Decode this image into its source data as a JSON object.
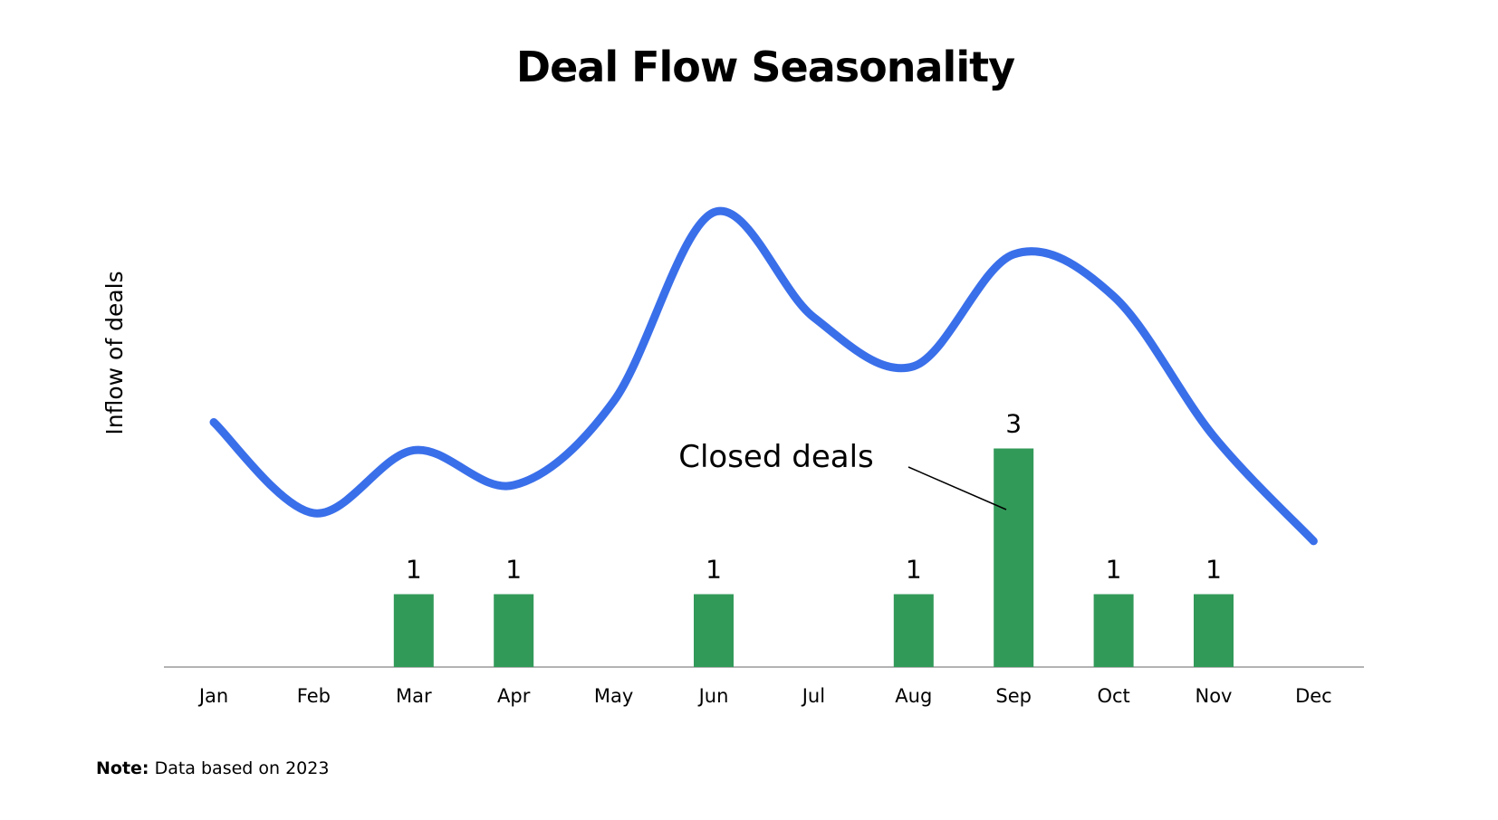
{
  "chart_data": {
    "type": "bar",
    "title": "Deal Flow Seasonality",
    "ylabel": "Inflow of deals",
    "xlabel": "",
    "categories": [
      "Jan",
      "Feb",
      "Mar",
      "Apr",
      "May",
      "Jun",
      "Jul",
      "Aug",
      "Sep",
      "Oct",
      "Nov",
      "Dec"
    ],
    "series": [
      {
        "name": "Closed deals",
        "type": "bar",
        "values": [
          0,
          0,
          1,
          1,
          0,
          1,
          0,
          1,
          3,
          1,
          1,
          0
        ],
        "color": "#329A59"
      },
      {
        "type": "line",
        "values": [
          3.5,
          2.2,
          3.1,
          2.6,
          3.8,
          6.5,
          5.0,
          4.3,
          5.9,
          5.3,
          3.3,
          1.8
        ],
        "color": "#3A6FEA"
      }
    ],
    "bar_ylim": [
      0,
      3
    ],
    "line_ylim": [
      0,
      7
    ],
    "annotations": [
      {
        "text": "Closed deals",
        "points_to": "Sep"
      }
    ],
    "grid": false,
    "legend": "none"
  },
  "note": {
    "label": "Note:",
    "text": "Data based on 2023"
  }
}
